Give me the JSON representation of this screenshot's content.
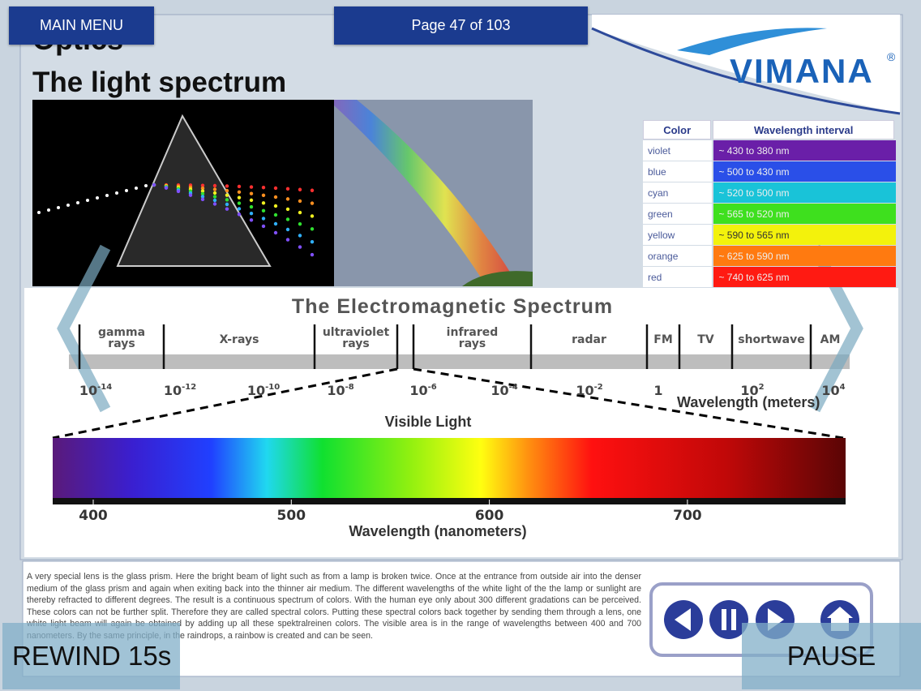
{
  "header": {
    "menu_button": "MAIN MENU",
    "page_indicator": "Page 47 of 103"
  },
  "slide": {
    "section": "Optics",
    "title": "The light spectrum",
    "logo": {
      "text": "VIMANA",
      "mark": "®"
    },
    "table": {
      "headers": [
        "Color",
        "Wavelength interval"
      ],
      "rows": [
        {
          "color": "violet",
          "interval": "~ 430 to 380 nm",
          "swatch": "#6a1fa8"
        },
        {
          "color": "blue",
          "interval": "~ 500 to 430 nm",
          "swatch": "#2a4fe8"
        },
        {
          "color": "cyan",
          "interval": "~ 520 to 500 nm",
          "swatch": "#19c3d8"
        },
        {
          "color": "green",
          "interval": "~ 565 to 520 nm",
          "swatch": "#3ee01e"
        },
        {
          "color": "yellow",
          "interval": "~ 590 to 565 nm",
          "swatch": "#f3f20c"
        },
        {
          "color": "orange",
          "interval": "~ 625 to 590 nm",
          "swatch": "#ff7a10"
        },
        {
          "color": "red",
          "interval": "~ 740 to 625 nm",
          "swatch": "#ff1a12"
        }
      ]
    },
    "em": {
      "title": "The Electromagnetic Spectrum",
      "bands": [
        "gamma rays",
        "X-rays",
        "ultraviolet rays",
        "infrared rays",
        "radar",
        "FM",
        "TV",
        "shortwave",
        "AM"
      ],
      "scale": [
        {
          "base": "10",
          "exp": "-14"
        },
        {
          "base": "10",
          "exp": "-12"
        },
        {
          "base": "10",
          "exp": "-10"
        },
        {
          "base": "10",
          "exp": "-8"
        },
        {
          "base": "10",
          "exp": "-6"
        },
        {
          "base": "10",
          "exp": "-4"
        },
        {
          "base": "10",
          "exp": "-2"
        },
        {
          "base": "1"
        },
        {
          "base": "10",
          "exp": "2"
        },
        {
          "base": "10",
          "exp": "4"
        }
      ],
      "axis_label": "Wavelength (meters)",
      "visible_label": "Visible Light",
      "nm_ticks": [
        400,
        500,
        600,
        700
      ],
      "nm_label": "Wavelength (nanometers)"
    },
    "paragraph": "A very special lens is the glass prism. Here the bright beam of light such as from a lamp is broken twice. Once at the entrance from outside air into the denser medium of the glass prism and again when exiting back into the thinner air medium. The different wavelengths of the white light of the the lamp or sunlight are thereby refracted to different degrees. The result is a continuous spectrum of colors. With the human eye only about 300 different gradations can be perceived. These colors can not be further split. Therefore they are called spectral colors. Putting these spectral colors back together by sending them through a lens, one white light beam will again be obtained by adding up all these spektralreinen colors. The visible area is in the range of wavelengths between 400 and 700 nanometers. By the same principle, in the raindrops, a rainbow is created and can be seen."
  },
  "controls": {
    "rewind": "REWIND 15s",
    "pause": "PAUSE"
  }
}
